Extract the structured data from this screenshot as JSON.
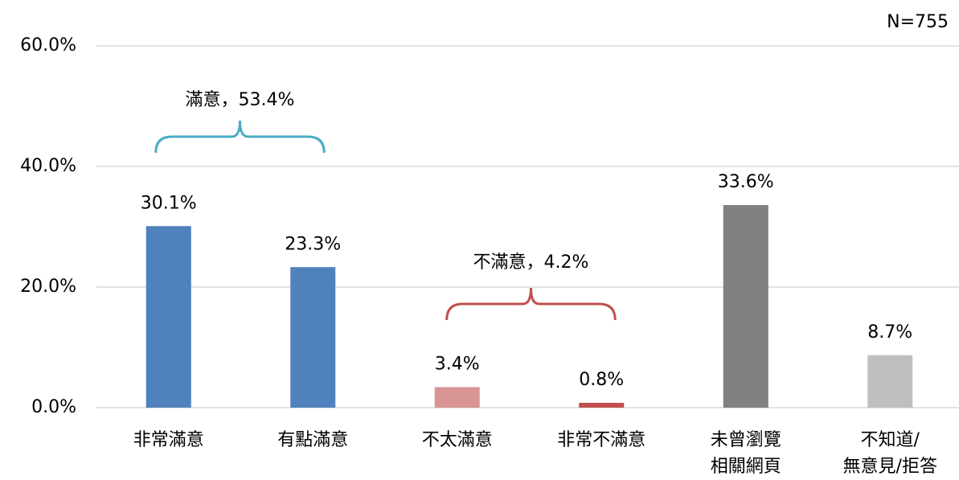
{
  "chart_data": {
    "type": "bar",
    "categories": [
      [
        "非常滿意"
      ],
      [
        "有點滿意"
      ],
      [
        "不太滿意"
      ],
      [
        "非常不滿意"
      ],
      [
        "未曾瀏覽",
        "相關網頁"
      ],
      [
        "不知道/",
        "無意見/拒答"
      ]
    ],
    "values": [
      30.1,
      23.3,
      3.4,
      0.8,
      33.6,
      8.7
    ],
    "value_labels": [
      "30.1%",
      "23.3%",
      "3.4%",
      "0.8%",
      "33.6%",
      "8.7%"
    ],
    "colors": [
      "#4f81bd",
      "#4f81bd",
      "#d99594",
      "#c0504d",
      "#808080",
      "#bfbfbf"
    ],
    "ylim": [
      0,
      60
    ],
    "yticks": [
      {
        "value": 0,
        "label": "0.0%"
      },
      {
        "value": 20,
        "label": "20.0%"
      },
      {
        "value": 40,
        "label": "40.0%"
      },
      {
        "value": 60,
        "label": "60.0%"
      }
    ],
    "grid": true,
    "annotations": [
      {
        "text": "滿意，53.4%",
        "color": "#4bacc6"
      },
      {
        "text": "不滿意，4.2%",
        "color": "#c0504d"
      },
      {
        "text": "N=755"
      }
    ]
  }
}
